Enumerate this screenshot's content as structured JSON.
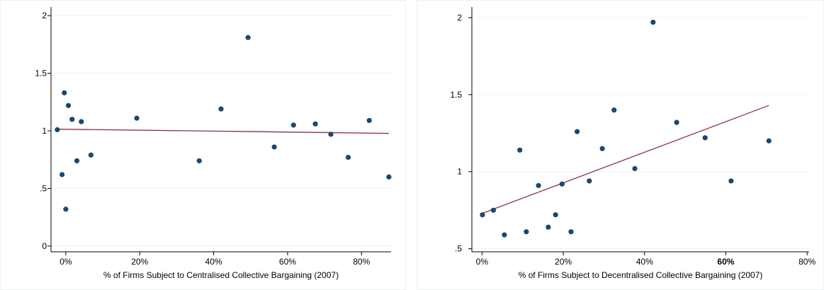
{
  "chart_data": [
    {
      "type": "scatter",
      "xlabel": "% of Firms Subject to Centralised Collective Bargaining (2007)",
      "ylabel": "",
      "xlim": [
        -4,
        88
      ],
      "ylim": [
        -0.05,
        2.05
      ],
      "x_ticks": [
        0,
        20,
        40,
        60,
        80
      ],
      "x_tick_labels": [
        "0%",
        "20%",
        "40%",
        "60%",
        "80%"
      ],
      "y_ticks": [
        0,
        0.5,
        1,
        1.5,
        2
      ],
      "y_tick_labels": [
        "0",
        ".5",
        "1",
        "1.5",
        "2"
      ],
      "grid": true,
      "colors": {
        "points": "#1a476f",
        "fit": "#90353b",
        "grid": "#eaf2f3"
      },
      "points": [
        {
          "x": -2.3,
          "y": 1.01
        },
        {
          "x": -1.0,
          "y": 0.62
        },
        {
          "x": -0.4,
          "y": 1.33
        },
        {
          "x": 0.0,
          "y": 0.32
        },
        {
          "x": 0.7,
          "y": 1.22
        },
        {
          "x": 1.7,
          "y": 1.1
        },
        {
          "x": 3.0,
          "y": 0.74
        },
        {
          "x": 4.2,
          "y": 1.08
        },
        {
          "x": 6.8,
          "y": 0.79
        },
        {
          "x": 19.2,
          "y": 1.11
        },
        {
          "x": 36.1,
          "y": 0.74
        },
        {
          "x": 42.0,
          "y": 1.19
        },
        {
          "x": 49.3,
          "y": 1.81
        },
        {
          "x": 56.4,
          "y": 0.86
        },
        {
          "x": 61.6,
          "y": 1.05
        },
        {
          "x": 67.5,
          "y": 1.06
        },
        {
          "x": 71.7,
          "y": 0.97
        },
        {
          "x": 76.4,
          "y": 0.77
        },
        {
          "x": 82.1,
          "y": 1.09
        },
        {
          "x": 87.4,
          "y": 0.6
        }
      ],
      "fit_line": [
        {
          "x": -2.3,
          "y": 1.015
        },
        {
          "x": 87.4,
          "y": 0.978
        }
      ]
    },
    {
      "type": "scatter",
      "xlabel": "% of Firms Subject to Decentralised Collective Bargaining (2007)",
      "ylabel": "",
      "xlim": [
        -2.5,
        80.5
      ],
      "ylim": [
        0.48,
        2.05
      ],
      "x_ticks": [
        0,
        20,
        40,
        60,
        80
      ],
      "x_tick_labels": [
        "0%",
        "20%",
        "40%",
        "60%",
        "80%"
      ],
      "x_tick_bold": [
        false,
        false,
        false,
        true,
        false
      ],
      "y_ticks": [
        0.5,
        1,
        1.5,
        2
      ],
      "y_tick_labels": [
        ".5",
        "1",
        "1.5",
        "2"
      ],
      "grid": true,
      "colors": {
        "points": "#1a476f",
        "fit": "#90353b",
        "grid": "#eaf2f3"
      },
      "points": [
        {
          "x": 0.1,
          "y": 0.72
        },
        {
          "x": 2.8,
          "y": 0.75
        },
        {
          "x": 5.5,
          "y": 0.59
        },
        {
          "x": 9.3,
          "y": 1.14
        },
        {
          "x": 10.9,
          "y": 0.61
        },
        {
          "x": 13.9,
          "y": 0.91
        },
        {
          "x": 16.3,
          "y": 0.64
        },
        {
          "x": 18.1,
          "y": 0.72
        },
        {
          "x": 19.7,
          "y": 0.92
        },
        {
          "x": 21.9,
          "y": 0.61
        },
        {
          "x": 23.4,
          "y": 1.26
        },
        {
          "x": 26.4,
          "y": 0.94
        },
        {
          "x": 29.6,
          "y": 1.15
        },
        {
          "x": 32.5,
          "y": 1.4
        },
        {
          "x": 37.6,
          "y": 1.02
        },
        {
          "x": 42.1,
          "y": 1.97
        },
        {
          "x": 47.9,
          "y": 1.32
        },
        {
          "x": 54.9,
          "y": 1.22
        },
        {
          "x": 61.3,
          "y": 0.94
        },
        {
          "x": 70.6,
          "y": 1.2
        }
      ],
      "fit_line": [
        {
          "x": 0.1,
          "y": 0.73
        },
        {
          "x": 70.6,
          "y": 1.43
        }
      ]
    }
  ]
}
